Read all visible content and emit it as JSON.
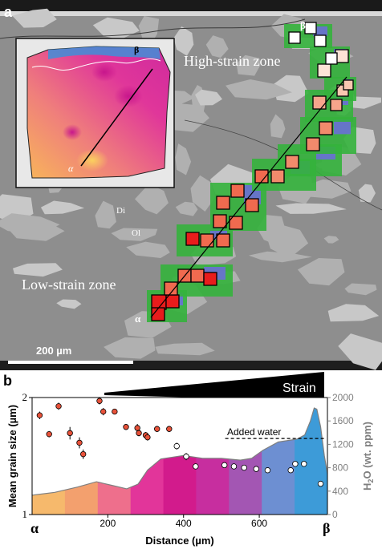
{
  "panel_a": {
    "panel_label": "a",
    "zones": {
      "high": "High-strain zone",
      "low": "Low-strain zone"
    },
    "minerals": {
      "di": "Di",
      "ol": "Ol"
    },
    "markers": {
      "alpha": "α",
      "beta": "β"
    },
    "scale_bar": "200 µm",
    "square_fill_colors": [
      "#e81c1c",
      "#f06a4f",
      "#f28a6c",
      "#f7a58c",
      "#f9c7b0",
      "#fde3d6",
      "#ffffff"
    ],
    "map_colors": {
      "green": "#34b23c",
      "blue": "#6a6fd6",
      "matrix": "#8d8d8d",
      "grain": "#b3b3b3"
    }
  },
  "panel_b": {
    "panel_label": "b",
    "strain_label": "Strain",
    "added_water_label": "Added water",
    "alpha_label": "α",
    "beta_label": "β",
    "chart_data": {
      "type": "scatter",
      "xlabel": "Distance (µm)",
      "ylabel": "Mean grain size (µm)",
      "y2label": "H2O (wt. ppm)",
      "y2label_parts": {
        "main": "H",
        "sub": "2",
        "rest": "O (wt. ppm)"
      },
      "xlim": [
        0,
        780
      ],
      "xticks": [
        200,
        400,
        600
      ],
      "ylim": [
        1,
        2
      ],
      "yscale": "log",
      "yticks": [
        1,
        2
      ],
      "y2lim": [
        0,
        2000
      ],
      "y2ticks": [
        0,
        400,
        800,
        1200,
        1600,
        2000
      ],
      "added_water_ppm": 1300,
      "grain_size_points": [
        {
          "x": 20,
          "y": 1.8,
          "err": 0.04
        },
        {
          "x": 45,
          "y": 1.61,
          "err": 0.03
        },
        {
          "x": 70,
          "y": 1.9,
          "err": 0.04
        },
        {
          "x": 100,
          "y": 1.62,
          "err": 0.06
        },
        {
          "x": 125,
          "y": 1.53,
          "err": 0.05
        },
        {
          "x": 135,
          "y": 1.43,
          "err": 0.04
        },
        {
          "x": 178,
          "y": 1.96,
          "err": 0.04
        },
        {
          "x": 188,
          "y": 1.84,
          "err": 0.04
        },
        {
          "x": 218,
          "y": 1.84,
          "err": 0.03
        },
        {
          "x": 248,
          "y": 1.68,
          "err": 0.03
        },
        {
          "x": 278,
          "y": 1.67,
          "err": 0.04
        },
        {
          "x": 282,
          "y": 1.62,
          "err": 0.03
        },
        {
          "x": 300,
          "y": 1.6,
          "err": 0.03
        },
        {
          "x": 305,
          "y": 1.58,
          "err": 0.03
        },
        {
          "x": 330,
          "y": 1.66,
          "err": 0.03
        },
        {
          "x": 362,
          "y": 1.66,
          "err": 0.03
        }
      ],
      "grain_size_points_high": [
        {
          "x": 382,
          "y": 1.5,
          "err": 0.03
        },
        {
          "x": 407,
          "y": 1.41,
          "err": 0.03
        },
        {
          "x": 432,
          "y": 1.33,
          "err": 0.02
        },
        {
          "x": 508,
          "y": 1.34,
          "err": 0.02
        },
        {
          "x": 533,
          "y": 1.33,
          "err": 0.02
        },
        {
          "x": 560,
          "y": 1.32,
          "err": 0.02
        },
        {
          "x": 592,
          "y": 1.31,
          "err": 0.02
        },
        {
          "x": 622,
          "y": 1.3,
          "err": 0.02
        },
        {
          "x": 683,
          "y": 1.3,
          "err": 0.02
        },
        {
          "x": 695,
          "y": 1.35,
          "err": 0.02
        },
        {
          "x": 718,
          "y": 1.35,
          "err": 0.02
        },
        {
          "x": 762,
          "y": 1.2,
          "err": 0.02
        }
      ],
      "h2o_profile": [
        {
          "x": 0,
          "ppm": 330
        },
        {
          "x": 60,
          "ppm": 380
        },
        {
          "x": 120,
          "ppm": 470
        },
        {
          "x": 170,
          "ppm": 560
        },
        {
          "x": 210,
          "ppm": 500
        },
        {
          "x": 250,
          "ppm": 440
        },
        {
          "x": 280,
          "ppm": 520
        },
        {
          "x": 305,
          "ppm": 760
        },
        {
          "x": 340,
          "ppm": 950
        },
        {
          "x": 400,
          "ppm": 1010
        },
        {
          "x": 450,
          "ppm": 960
        },
        {
          "x": 500,
          "ppm": 960
        },
        {
          "x": 550,
          "ppm": 930
        },
        {
          "x": 580,
          "ppm": 960
        },
        {
          "x": 610,
          "ppm": 1100
        },
        {
          "x": 650,
          "ppm": 1240
        },
        {
          "x": 700,
          "ppm": 1290
        },
        {
          "x": 720,
          "ppm": 1360
        },
        {
          "x": 735,
          "ppm": 1600
        },
        {
          "x": 745,
          "ppm": 1820
        },
        {
          "x": 752,
          "ppm": 1800
        },
        {
          "x": 762,
          "ppm": 1500
        },
        {
          "x": 772,
          "ppm": 1000
        },
        {
          "x": 780,
          "ppm": 700
        }
      ],
      "gradient_colors": [
        "#f6b96c",
        "#f3a06e",
        "#ee6f8c",
        "#e2359a",
        "#d21b8c",
        "#c72e9f",
        "#a356b3",
        "#6d8fd2",
        "#3d9bd8"
      ]
    }
  }
}
